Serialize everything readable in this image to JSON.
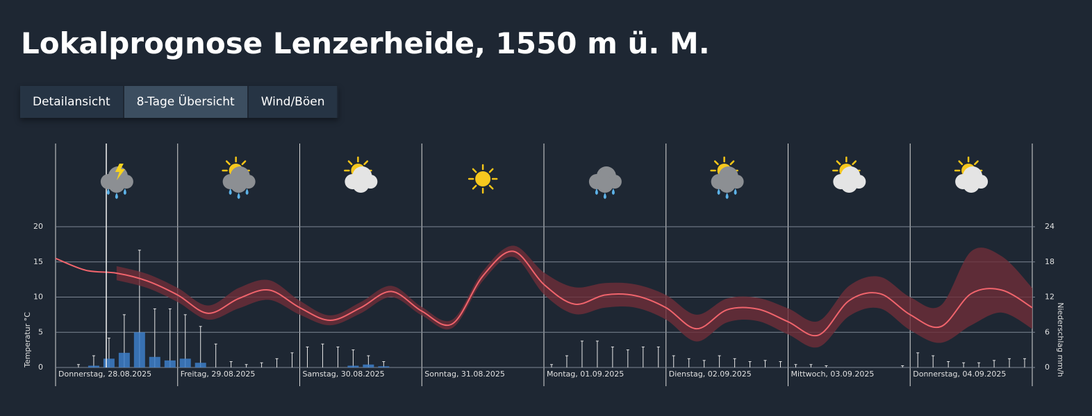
{
  "header": {
    "title": "Lokalprognose Lenzerheide, 1550 m ü. M."
  },
  "tabs": [
    "Detailansicht",
    "8-Tage Übersicht",
    "Wind/Böen"
  ],
  "chart_data": {
    "type": "line",
    "categories": [
      "Donnerstag, 28.08.2025",
      "Freitag, 29.08.2025",
      "Samstag, 30.08.2025",
      "Sonntag, 31.08.2025",
      "Montag, 01.09.2025",
      "Dienstag, 02.09.2025",
      "Mittwoch, 03.09.2025",
      "Donnerstag, 04.09.2025"
    ],
    "ylabel": "Temperatur °C",
    "y2label": "Niederschlag mm/h",
    "ylim": [
      0,
      20
    ],
    "yticks": [
      0,
      5,
      10,
      15,
      20
    ],
    "y2lim": [
      0,
      24
    ],
    "y2ticks": [
      0,
      6,
      12,
      18,
      24
    ],
    "grid": true,
    "temperature": {
      "color": "#f0646c",
      "band_color": "#6e2e38",
      "values": [
        15.5,
        13.8,
        13.4,
        12.3,
        10.3,
        7.7,
        9.8,
        11.0,
        8.5,
        6.7,
        8.5,
        10.8,
        8.0,
        6.2,
        13.0,
        16.5,
        11.8,
        9.0,
        10.3,
        10.2,
        8.5,
        5.5,
        8.2,
        8.3,
        6.5,
        4.6,
        9.5,
        10.5,
        7.5,
        5.8,
        10.5,
        11.0,
        8.5
      ],
      "upper": [
        null,
        null,
        14.4,
        13.3,
        11.3,
        8.8,
        11.3,
        12.4,
        9.5,
        7.4,
        9.3,
        11.6,
        8.6,
        6.8,
        13.7,
        17.3,
        13.5,
        11.4,
        12.0,
        11.8,
        10.3,
        7.5,
        9.8,
        9.9,
        8.4,
        6.6,
        11.6,
        12.9,
        10.0,
        8.8,
        16.5,
        15.8,
        11.3
      ],
      "lower": [
        null,
        null,
        12.4,
        11.3,
        9.3,
        6.8,
        8.4,
        9.6,
        7.5,
        6.0,
        7.7,
        10.0,
        7.4,
        5.6,
        12.3,
        15.7,
        10.4,
        7.6,
        8.5,
        8.5,
        6.8,
        3.7,
        6.4,
        6.6,
        4.7,
        2.9,
        7.3,
        8.4,
        5.3,
        3.5,
        6.0,
        7.8,
        5.5
      ]
    },
    "precipitation": {
      "axis": "y2",
      "color": "#3d7fc9",
      "max_color": "#e8e8e8",
      "values": [
        0,
        0,
        0.3,
        1.5,
        2.5,
        6,
        1.8,
        1.2,
        1.5,
        0.8,
        0,
        0,
        0,
        0,
        0,
        0,
        0,
        0,
        0,
        0.3,
        0.5,
        0.2,
        0,
        0,
        0,
        0,
        0,
        0,
        0,
        0,
        0,
        0,
        0,
        0,
        0,
        0,
        0,
        0,
        0,
        0,
        0,
        0,
        0,
        0,
        0,
        0,
        0,
        0,
        0,
        0,
        0,
        0,
        0,
        0,
        0,
        0,
        0,
        0,
        0,
        0,
        0,
        0,
        0,
        0
      ],
      "max_values": [
        0,
        0.5,
        2,
        5,
        9,
        20,
        10,
        10,
        9,
        7,
        4,
        1,
        0.5,
        0.8,
        1.5,
        2.5,
        3.5,
        4,
        3.5,
        3,
        2,
        1,
        0,
        0,
        0,
        0,
        0,
        0,
        0,
        0,
        0,
        0,
        0.5,
        2,
        4.5,
        4.5,
        3.5,
        3,
        3.5,
        3.5,
        2,
        1.5,
        1.2,
        2,
        1.5,
        1,
        1.2,
        1,
        0.5,
        0.5,
        0.3,
        0,
        0,
        0,
        0,
        0.3,
        2.5,
        2,
        1,
        0.8,
        0.8,
        1.2,
        1.5,
        1.5
      ]
    }
  }
}
